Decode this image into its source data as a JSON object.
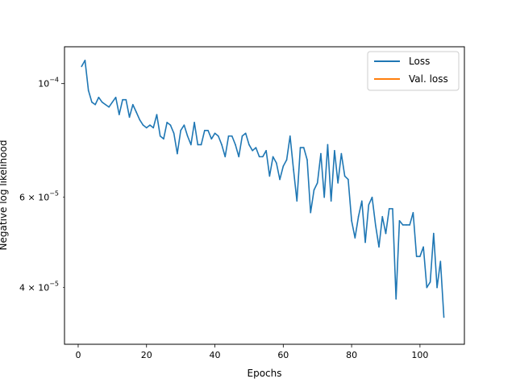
{
  "chart_data": {
    "type": "line",
    "xlabel": "Epochs",
    "ylabel": "Negative log likelihood",
    "yscale": "log",
    "xlim": [
      -4,
      113
    ],
    "ylim": [
      3.1e-05,
      0.000118
    ],
    "xticks": [
      0,
      20,
      40,
      60,
      80,
      100
    ],
    "yticks_major": [
      {
        "value": 0.0001,
        "mantissa": "",
        "exp": "−4"
      }
    ],
    "yticks_minor": [
      {
        "value": 6e-05,
        "mantissa": "6 × ",
        "exp": "−5"
      },
      {
        "value": 4e-05,
        "mantissa": "4 × ",
        "exp": "−5"
      }
    ],
    "legend_position": "top-right",
    "grid": false,
    "series": [
      {
        "name": "Loss",
        "color": "#1f77b4",
        "x": [
          1,
          2,
          3,
          4,
          5,
          6,
          7,
          8,
          9,
          10,
          11,
          12,
          13,
          14,
          15,
          16,
          17,
          18,
          19,
          20,
          21,
          22,
          23,
          24,
          25,
          26,
          27,
          28,
          29,
          30,
          31,
          32,
          33,
          34,
          35,
          36,
          37,
          38,
          39,
          40,
          41,
          42,
          43,
          44,
          45,
          46,
          47,
          48,
          49,
          50,
          51,
          52,
          53,
          54,
          55,
          56,
          57,
          58,
          59,
          60,
          61,
          62,
          63,
          64,
          65,
          66,
          67,
          68,
          69,
          70,
          71,
          72,
          73,
          74,
          75,
          76,
          77,
          78,
          79,
          80,
          81,
          82,
          83,
          84,
          85,
          86,
          87,
          88,
          89,
          90,
          91,
          92,
          93,
          94,
          95,
          96,
          97,
          98,
          99,
          100,
          101,
          102,
          103,
          104,
          105,
          106,
          107
        ],
        "values": [
          0.000108,
          0.000111,
          9.7e-05,
          9.2e-05,
          9.1e-05,
          9.4e-05,
          9.2e-05,
          9.1e-05,
          9e-05,
          9.2e-05,
          9.4e-05,
          8.7e-05,
          9.3e-05,
          9.3e-05,
          8.6e-05,
          9.1e-05,
          8.8e-05,
          8.5e-05,
          8.3e-05,
          8.2e-05,
          8.3e-05,
          8.2e-05,
          8.7e-05,
          7.9e-05,
          7.8e-05,
          8.4e-05,
          8.3e-05,
          8e-05,
          7.3e-05,
          8.1e-05,
          8.3e-05,
          7.9e-05,
          7.6e-05,
          8.4e-05,
          7.6e-05,
          7.6e-05,
          8.1e-05,
          8.1e-05,
          7.8e-05,
          8e-05,
          7.9e-05,
          7.6e-05,
          7.2e-05,
          7.9e-05,
          7.9e-05,
          7.6e-05,
          7.2e-05,
          7.9e-05,
          8e-05,
          7.6e-05,
          7.4e-05,
          7.5e-05,
          7.2e-05,
          7.2e-05,
          7.4e-05,
          6.6e-05,
          7.2e-05,
          7e-05,
          6.5e-05,
          6.9e-05,
          7.1e-05,
          7.9e-05,
          6.8e-05,
          5.9e-05,
          7.5e-05,
          7.5e-05,
          7.1e-05,
          5.6e-05,
          6.2e-05,
          6.4e-05,
          7.3e-05,
          6e-05,
          7.6e-05,
          5.9e-05,
          7.4e-05,
          6.4e-05,
          7.3e-05,
          6.6e-05,
          6.5e-05,
          5.4e-05,
          5e-05,
          5.5e-05,
          5.9e-05,
          4.9e-05,
          5.8e-05,
          6e-05,
          5.3e-05,
          4.8e-05,
          5.5e-05,
          5.1e-05,
          5.7e-05,
          5.7e-05,
          3.8e-05,
          5.4e-05,
          5.3e-05,
          5.3e-05,
          5.3e-05,
          5.6e-05,
          4.6e-05,
          4.6e-05,
          4.8e-05,
          4e-05,
          4.1e-05,
          5.1e-05,
          4e-05,
          4.5e-05,
          3.5e-05
        ]
      },
      {
        "name": "Val. loss",
        "color": "#ff7f0e",
        "x": [],
        "values": []
      }
    ]
  }
}
